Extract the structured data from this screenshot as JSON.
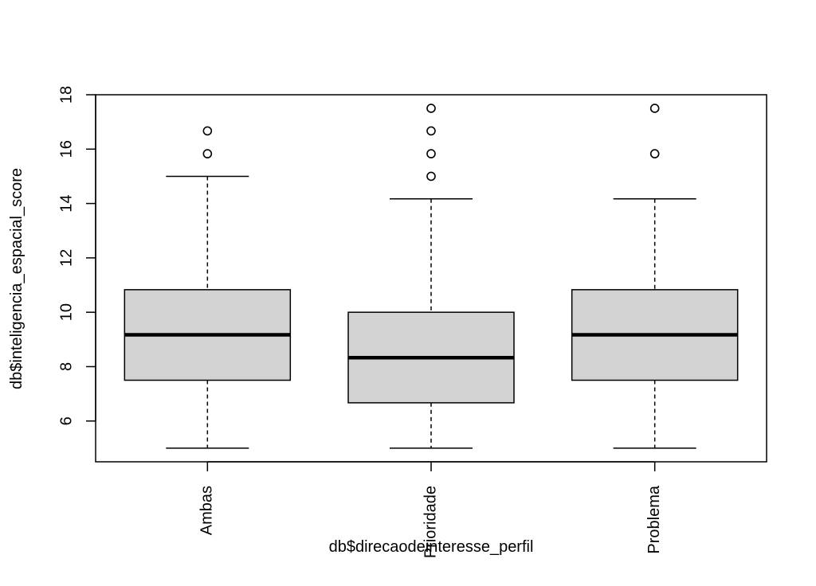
{
  "chart_data": {
    "type": "box",
    "title": "",
    "xlabel": "db$direcaodeinteresse_perfil",
    "ylabel": "db$inteligencia_espacial_score",
    "ylim": [
      4.5,
      18
    ],
    "yticks": [
      6,
      8,
      10,
      12,
      14,
      16,
      18
    ],
    "ytick_labels": [
      "6",
      "8",
      "10",
      "12",
      "14",
      "16",
      "18"
    ],
    "grid": false,
    "categories": [
      "Ambas",
      "Prioridade",
      "Problema"
    ],
    "boxes": [
      {
        "category": "Ambas",
        "whisker_low": 5.0,
        "q1": 7.5,
        "median": 9.17,
        "q3": 10.83,
        "whisker_high": 15.0,
        "outliers": [
          15.83,
          16.67
        ]
      },
      {
        "category": "Prioridade",
        "whisker_low": 5.0,
        "q1": 6.67,
        "median": 8.33,
        "q3": 10.0,
        "whisker_high": 14.17,
        "outliers": [
          15.0,
          15.83,
          16.67,
          17.5
        ]
      },
      {
        "category": "Problema",
        "whisker_low": 5.0,
        "q1": 7.5,
        "median": 9.17,
        "q3": 10.83,
        "whisker_high": 14.17,
        "outliers": [
          15.83,
          17.5
        ]
      }
    ],
    "colors": {
      "box_fill": "#d3d3d3",
      "stroke": "#000000",
      "background": "#ffffff"
    }
  }
}
